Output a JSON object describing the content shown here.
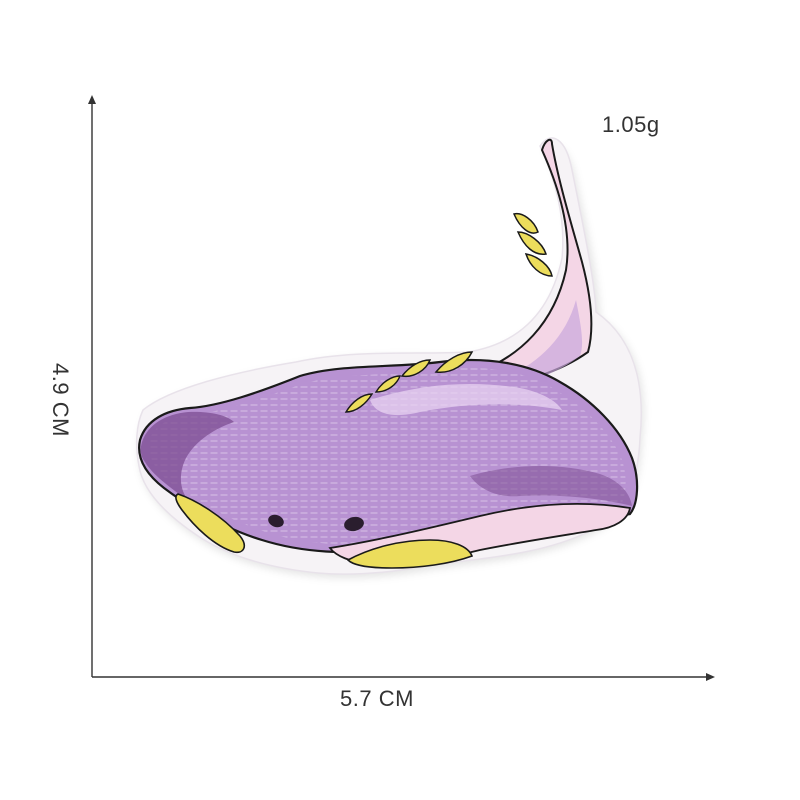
{
  "dimensions": {
    "height_label": "4.9 CM",
    "width_label": "5.7 CM",
    "weight_label": "1.05g"
  },
  "colors": {
    "background": "#ffffff",
    "axis": "#333333",
    "patch_backing": "#f6f3f6",
    "body_purple": "#b892d2",
    "body_dark_purple": "#7c4c92",
    "belly_pink": "#f4d6e6",
    "fin_yellow": "#ecdd5c",
    "outline": "#1a1a1a"
  }
}
